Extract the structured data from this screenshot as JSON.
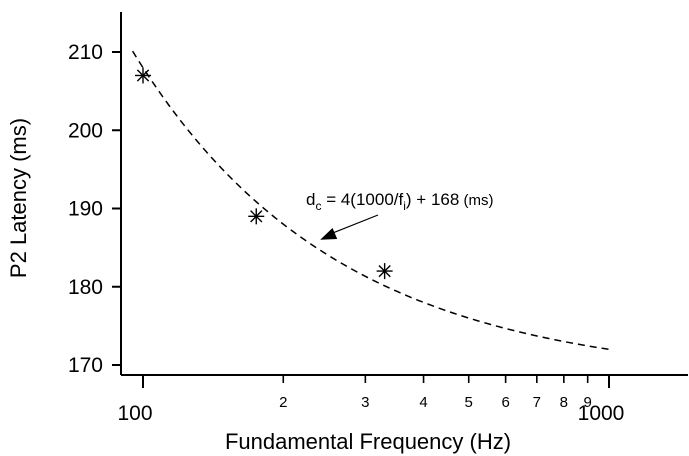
{
  "chart_data": {
    "type": "scatter",
    "title": "",
    "xlabel": "Fundamental Frequency (Hz)",
    "ylabel": "P2 Latency (ms)",
    "x_scale": "log",
    "xlim": [
      92,
      2000
    ],
    "ylim": [
      167.5,
      215
    ],
    "grid": false,
    "legend": "none",
    "x_major_ticks": [
      {
        "value": 100,
        "label": "100"
      },
      {
        "value": 1000,
        "label": "1000"
      }
    ],
    "x_minor_ticks": [
      {
        "value": 200,
        "label": "2"
      },
      {
        "value": 300,
        "label": "3"
      },
      {
        "value": 400,
        "label": "4"
      },
      {
        "value": 500,
        "label": "5"
      },
      {
        "value": 600,
        "label": "6"
      },
      {
        "value": 700,
        "label": "7"
      },
      {
        "value": 800,
        "label": "8"
      },
      {
        "value": 900,
        "label": "9"
      }
    ],
    "y_ticks": [
      {
        "value": 170,
        "label": "170"
      },
      {
        "value": 180,
        "label": "180"
      },
      {
        "value": 190,
        "label": "190"
      },
      {
        "value": 200,
        "label": "200"
      },
      {
        "value": 210,
        "label": "210"
      }
    ],
    "series": [
      {
        "marker": "asterisk",
        "points": [
          {
            "x": 100,
            "y": 207
          },
          {
            "x": 175,
            "y": 189
          },
          {
            "x": 330,
            "y": 182
          }
        ]
      }
    ],
    "fit_curve": {
      "style": "dashed",
      "formula": "y = 4*(1000/x) + 168",
      "x_range": [
        95,
        1000
      ]
    },
    "annotation": {
      "main_pre": "d",
      "main_sub1": "c",
      "main_mid": " = 4(1000/f",
      "main_sub2": "i",
      "main_post": ") + 168",
      "units": " (ms)",
      "arrow_target": {
        "x": 240,
        "y": 186
      }
    }
  }
}
